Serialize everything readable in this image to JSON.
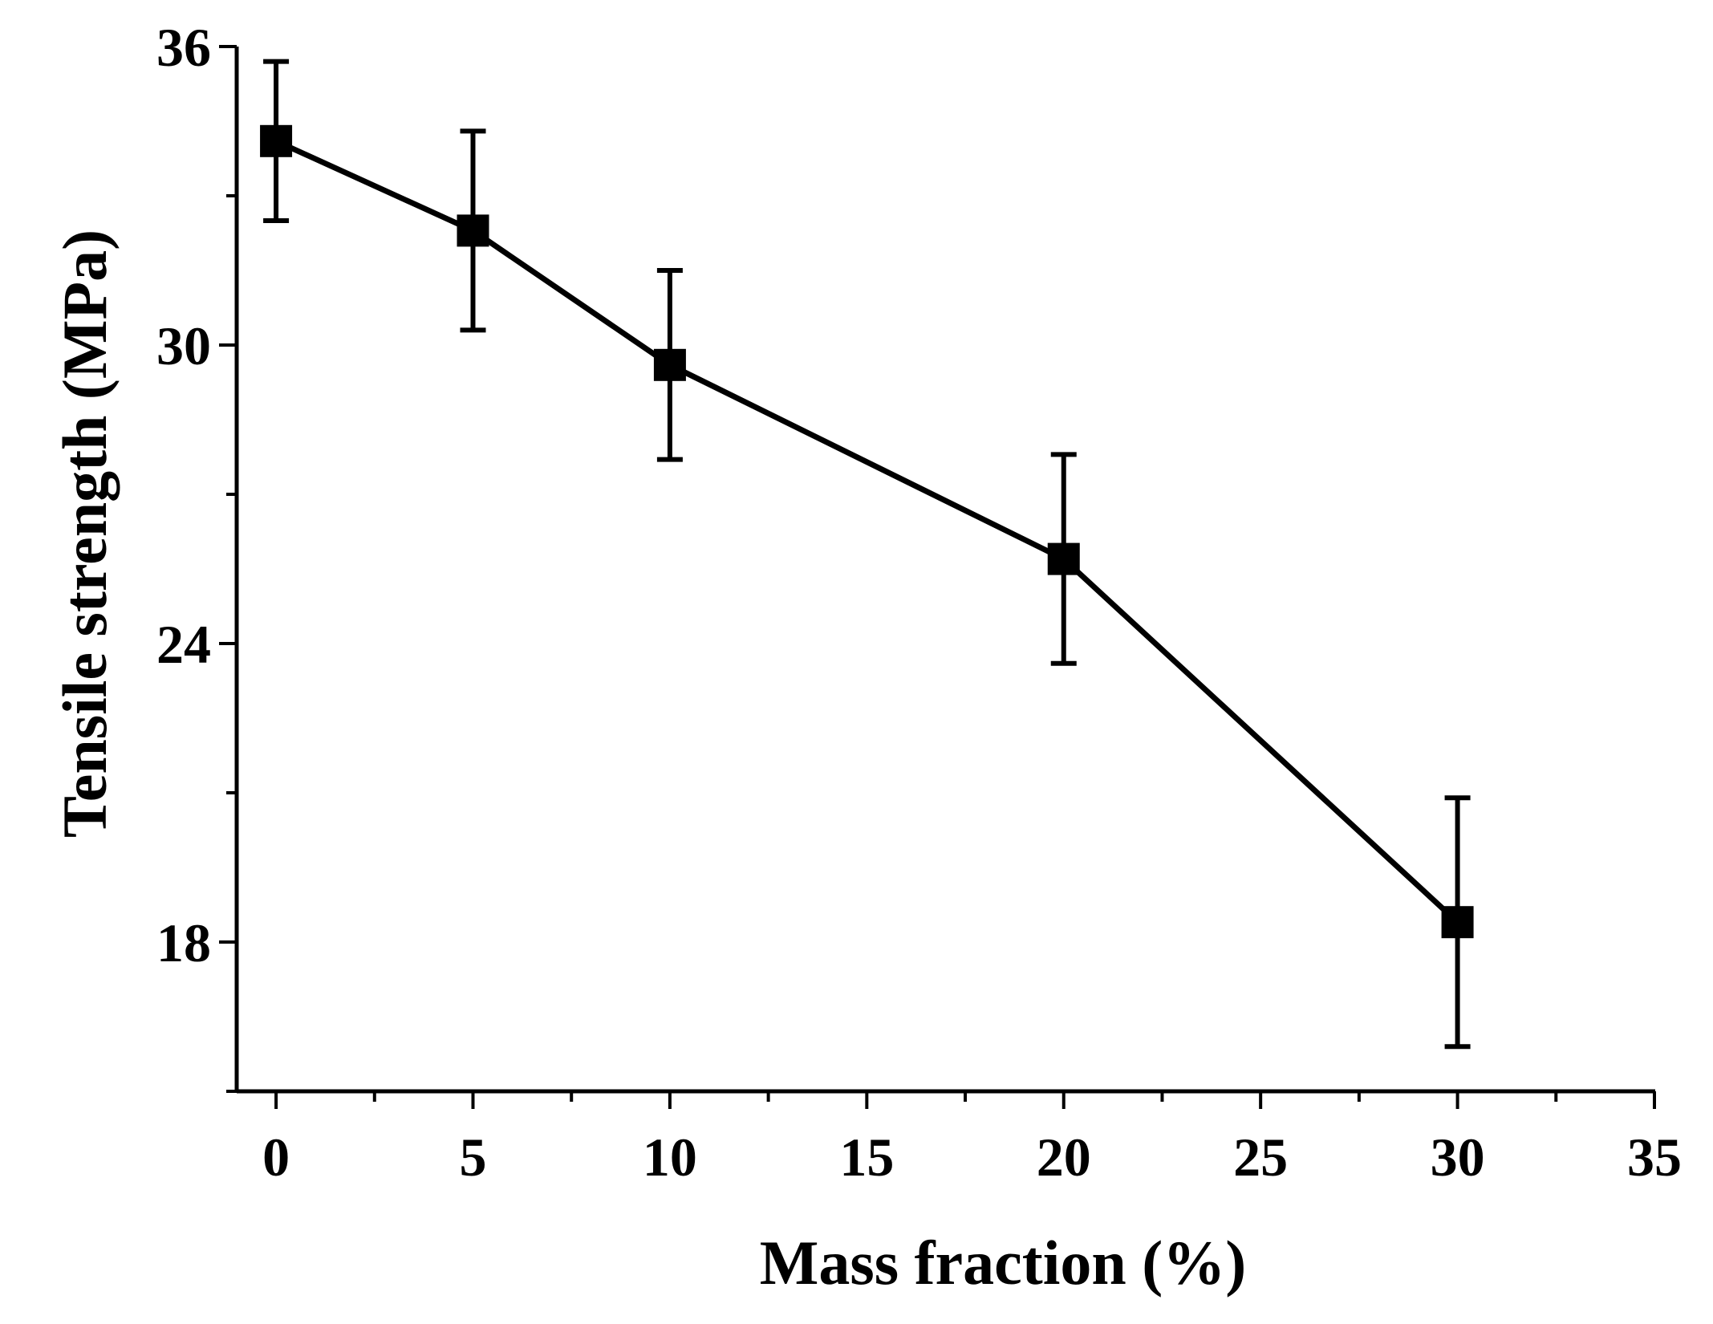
{
  "chart_data": {
    "type": "line",
    "title": "",
    "xlabel": "Mass fraction (%)",
    "ylabel": "Tensile strength (MPa)",
    "xlim": [
      -1,
      35
    ],
    "ylim": [
      15,
      36
    ],
    "x_ticks": [
      0,
      5,
      10,
      15,
      20,
      25,
      30,
      35
    ],
    "y_ticks": [
      18,
      24,
      30,
      36
    ],
    "x_minor_step": 2.5,
    "y_minor_step": 3,
    "grid": false,
    "legend": "none",
    "series": [
      {
        "name": "Tensile strength",
        "marker": "square",
        "color": "#000000",
        "x": [
          0,
          5,
          10,
          20,
          30
        ],
        "y": [
          34.1,
          32.3,
          29.6,
          25.7,
          18.4
        ],
        "error": [
          1.6,
          2.0,
          1.9,
          2.1,
          2.5
        ]
      }
    ]
  }
}
